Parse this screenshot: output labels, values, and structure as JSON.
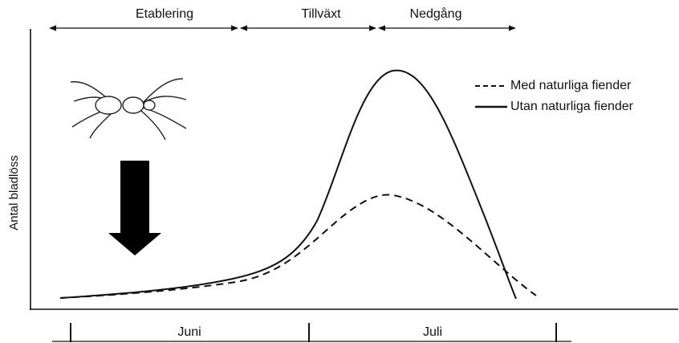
{
  "phases": [
    {
      "label": "Etablering"
    },
    {
      "label": "Tillväxt"
    },
    {
      "label": "Nedgång"
    }
  ],
  "legend": [
    {
      "label": "Med naturliga fiender"
    },
    {
      "label": "Utan naturliga fiender"
    }
  ],
  "y_axis_label": "Antal bladlöss",
  "months": [
    {
      "label": "Juni"
    },
    {
      "label": "Juli"
    }
  ]
}
